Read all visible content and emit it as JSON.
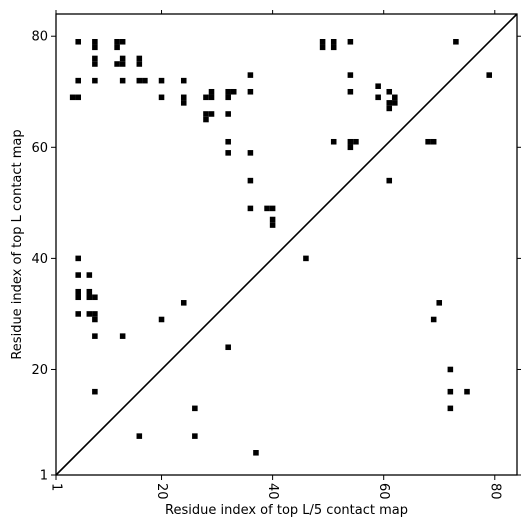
{
  "chart_data": {
    "type": "heatmap",
    "title": "",
    "xlabel": "Residue index of top L/5 contact map",
    "ylabel": "Residue index of top L contact map",
    "xlim": [
      1,
      84
    ],
    "ylim": [
      1,
      84
    ],
    "xticks": [
      1,
      20,
      40,
      60,
      80
    ],
    "yticks": [
      1,
      20,
      40,
      60,
      80
    ],
    "diagonal": true,
    "grid": false,
    "cell_color": "#000000",
    "background_color": "#ffffff",
    "upper_cells": [
      [
        5,
        79
      ],
      [
        8,
        79
      ],
      [
        8,
        78
      ],
      [
        8,
        76
      ],
      [
        8,
        75
      ],
      [
        12,
        79
      ],
      [
        13,
        79
      ],
      [
        12,
        78
      ],
      [
        16,
        76
      ],
      [
        16,
        75
      ],
      [
        12,
        75
      ],
      [
        13,
        75
      ],
      [
        13,
        76
      ],
      [
        5,
        72
      ],
      [
        8,
        72
      ],
      [
        13,
        72
      ],
      [
        16,
        72
      ],
      [
        17,
        72
      ],
      [
        20,
        72
      ],
      [
        24,
        72
      ],
      [
        4,
        69
      ],
      [
        5,
        69
      ],
      [
        20,
        69
      ],
      [
        24,
        69
      ],
      [
        24,
        68
      ],
      [
        28,
        69
      ],
      [
        29,
        69
      ],
      [
        29,
        70
      ],
      [
        32,
        69
      ],
      [
        32,
        70
      ],
      [
        33,
        70
      ],
      [
        36,
        73
      ],
      [
        36,
        70
      ],
      [
        28,
        66
      ],
      [
        29,
        66
      ],
      [
        28,
        65
      ],
      [
        32,
        66
      ],
      [
        32,
        61
      ],
      [
        32,
        59
      ],
      [
        36,
        59
      ],
      [
        36,
        54
      ],
      [
        36,
        49
      ],
      [
        39,
        49
      ],
      [
        40,
        49
      ],
      [
        40,
        47
      ],
      [
        40,
        46
      ],
      [
        49,
        79
      ],
      [
        49,
        78
      ],
      [
        51,
        79
      ],
      [
        51,
        78
      ],
      [
        54,
        79
      ],
      [
        54,
        73
      ],
      [
        54,
        70
      ],
      [
        51,
        61
      ],
      [
        54,
        61
      ],
      [
        55,
        61
      ],
      [
        54,
        60
      ],
      [
        59,
        71
      ],
      [
        59,
        69
      ],
      [
        61,
        70
      ],
      [
        62,
        69
      ],
      [
        61,
        68
      ],
      [
        62,
        68
      ],
      [
        61,
        67
      ],
      [
        61,
        54
      ],
      [
        68,
        61
      ],
      [
        69,
        61
      ],
      [
        73,
        79
      ],
      [
        79,
        73
      ]
    ],
    "lower_cells": [
      [
        5,
        40
      ],
      [
        46,
        40
      ],
      [
        5,
        37
      ],
      [
        7,
        37
      ],
      [
        5,
        34
      ],
      [
        7,
        34
      ],
      [
        5,
        33
      ],
      [
        7,
        33
      ],
      [
        8,
        33
      ],
      [
        24,
        32
      ],
      [
        70,
        32
      ],
      [
        5,
        30
      ],
      [
        7,
        30
      ],
      [
        8,
        30
      ],
      [
        8,
        29
      ],
      [
        20,
        29
      ],
      [
        69,
        29
      ],
      [
        8,
        26
      ],
      [
        13,
        26
      ],
      [
        32,
        24
      ],
      [
        72,
        20
      ],
      [
        8,
        16
      ],
      [
        72,
        16
      ],
      [
        75,
        16
      ],
      [
        26,
        13
      ],
      [
        72,
        13
      ],
      [
        16,
        8
      ],
      [
        26,
        8
      ],
      [
        37,
        5
      ]
    ]
  }
}
